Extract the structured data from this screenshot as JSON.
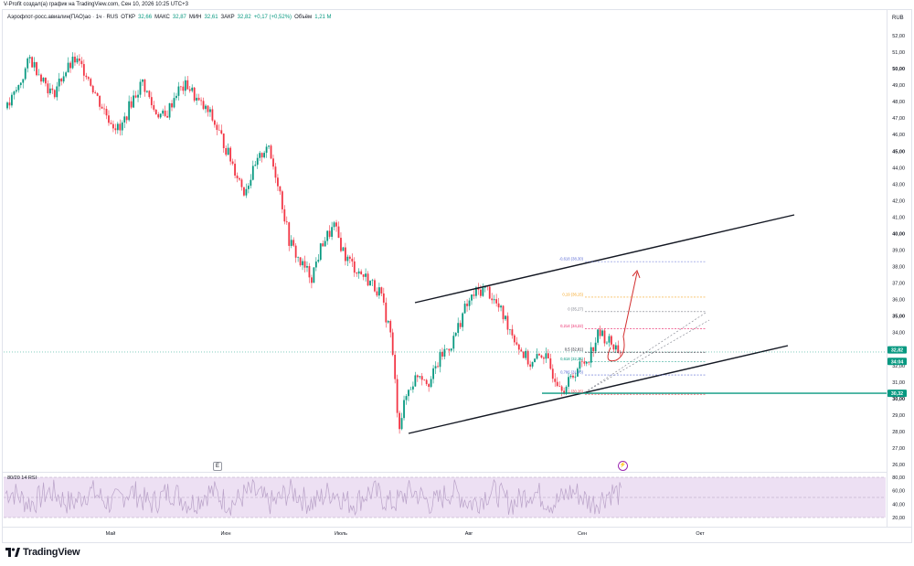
{
  "header": {
    "attribution": "V-Profit создал(а) график на TradingView.com, Сен 10, 2026 10:25 UTC+3"
  },
  "legend": {
    "symbol": "Аэрофлот-росс.авиалин(ПАО)ао · 1ч · RUS",
    "open_label": "ОТКР",
    "open_value": "32,66",
    "high_label": "МАКС",
    "high_value": "32,87",
    "low_label": "МИН",
    "low_value": "32,61",
    "close_label": "ЗАКР",
    "close_value": "32,82",
    "change": "+0,17 (+0,52%)",
    "volume_label": "Объём",
    "volume_value": "1,21 M"
  },
  "currency": "RUB",
  "rsi": {
    "label": "80/20 14 RSI"
  },
  "markers": {
    "e_label": "E"
  },
  "brand": {
    "name": "TradingView"
  },
  "colors": {
    "up": "#089981",
    "down": "#f23645",
    "text": "#131722",
    "rsi_fill": "#ede0f3",
    "rsi_line": "#9c27b0",
    "support": "#089981",
    "arrow": "#d32f2f"
  },
  "chart_data": {
    "type": "candlestick",
    "price_axis": {
      "ticks": [
        "52,00",
        "51,00",
        "50,00",
        "49,00",
        "48,00",
        "47,00",
        "46,00",
        "45,00",
        "44,00",
        "43,00",
        "42,00",
        "41,00",
        "40,00",
        "39,00",
        "38,00",
        "37,00",
        "36,00",
        "35,00",
        "34,00",
        "33,00",
        "32,00",
        "31,00",
        "30,00",
        "29,00",
        "28,00",
        "27,00",
        "26,00"
      ],
      "ylim": [
        26,
        52
      ],
      "bold_ticks": [
        "50,00",
        "45,00",
        "40,00",
        "35,00",
        "30,00"
      ]
    },
    "rsi_axis": {
      "ticks": [
        "80,00",
        "60,00",
        "40,00",
        "20,00"
      ],
      "ylim": [
        20,
        80
      ],
      "band": [
        20,
        80
      ]
    },
    "time_axis": {
      "labels": [
        "Май",
        "Июн",
        "Июль",
        "Авг",
        "Сен",
        "Окт"
      ]
    },
    "price_labels": [
      {
        "value": "32,82",
        "color": "#089981"
      },
      {
        "value": "34:04",
        "color": "#089981"
      },
      {
        "value": "30,32",
        "color": "#089981"
      }
    ],
    "support_level": 30.32,
    "fib_levels": [
      {
        "label": "-0,618 (38,30)",
        "price": 38.3,
        "color": "#5b6bd5"
      },
      {
        "label": "0,19 (36,15)",
        "price": 36.15,
        "color": "#f5a623"
      },
      {
        "label": "0 (35,27)",
        "price": 35.27,
        "color": "#787b86"
      },
      {
        "label": "0,214 (34,22)",
        "price": 34.22,
        "color": "#e91e63"
      },
      {
        "label": "0,5 (32,81)",
        "price": 32.81,
        "color": "#131722"
      },
      {
        "label": "0,618 (32,23)",
        "price": 32.23,
        "color": "#089981"
      },
      {
        "label": "0,786 (31,43)",
        "price": 31.43,
        "color": "#5b6bd5"
      },
      {
        "label": "1 (30,26)",
        "price": 30.26,
        "color": "#f23645"
      }
    ],
    "price_path": [
      {
        "t": 0,
        "p": 47.6
      },
      {
        "t": 4,
        "p": 48.9
      },
      {
        "t": 8,
        "p": 50.6
      },
      {
        "t": 12,
        "p": 49.6
      },
      {
        "t": 16,
        "p": 48.4
      },
      {
        "t": 20,
        "p": 49.7
      },
      {
        "t": 24,
        "p": 50.5
      },
      {
        "t": 28,
        "p": 49.8
      },
      {
        "t": 32,
        "p": 48.2
      },
      {
        "t": 36,
        "p": 47.0
      },
      {
        "t": 40,
        "p": 46.2
      },
      {
        "t": 44,
        "p": 48.0
      },
      {
        "t": 48,
        "p": 49.2
      },
      {
        "t": 52,
        "p": 47.5
      },
      {
        "t": 56,
        "p": 47.0
      },
      {
        "t": 60,
        "p": 48.6
      },
      {
        "t": 64,
        "p": 49.0
      },
      {
        "t": 68,
        "p": 47.9
      },
      {
        "t": 72,
        "p": 47.2
      },
      {
        "t": 76,
        "p": 45.8
      },
      {
        "t": 80,
        "p": 44.2
      },
      {
        "t": 84,
        "p": 42.6
      },
      {
        "t": 88,
        "p": 44.0
      },
      {
        "t": 92,
        "p": 45.4
      },
      {
        "t": 96,
        "p": 43.2
      },
      {
        "t": 100,
        "p": 39.6
      },
      {
        "t": 104,
        "p": 38.2
      },
      {
        "t": 108,
        "p": 37.4
      },
      {
        "t": 112,
        "p": 39.5
      },
      {
        "t": 116,
        "p": 40.4
      },
      {
        "t": 120,
        "p": 38.6
      },
      {
        "t": 124,
        "p": 37.8
      },
      {
        "t": 128,
        "p": 37.2
      },
      {
        "t": 132,
        "p": 36.5
      },
      {
        "t": 136,
        "p": 34.0
      },
      {
        "t": 139,
        "p": 28.3
      },
      {
        "t": 142,
        "p": 30.4
      },
      {
        "t": 146,
        "p": 31.6
      },
      {
        "t": 150,
        "p": 31.0
      },
      {
        "t": 154,
        "p": 32.6
      },
      {
        "t": 158,
        "p": 33.4
      },
      {
        "t": 162,
        "p": 35.3
      },
      {
        "t": 166,
        "p": 36.4
      },
      {
        "t": 170,
        "p": 36.7
      },
      {
        "t": 174,
        "p": 35.6
      },
      {
        "t": 178,
        "p": 34.4
      },
      {
        "t": 182,
        "p": 33.0
      },
      {
        "t": 186,
        "p": 32.0
      },
      {
        "t": 190,
        "p": 32.8
      },
      {
        "t": 194,
        "p": 31.4
      },
      {
        "t": 198,
        "p": 30.6
      },
      {
        "t": 202,
        "p": 31.8
      },
      {
        "t": 206,
        "p": 32.4
      },
      {
        "t": 210,
        "p": 34.0
      },
      {
        "t": 214,
        "p": 33.4
      },
      {
        "t": 218,
        "p": 32.8
      }
    ]
  }
}
